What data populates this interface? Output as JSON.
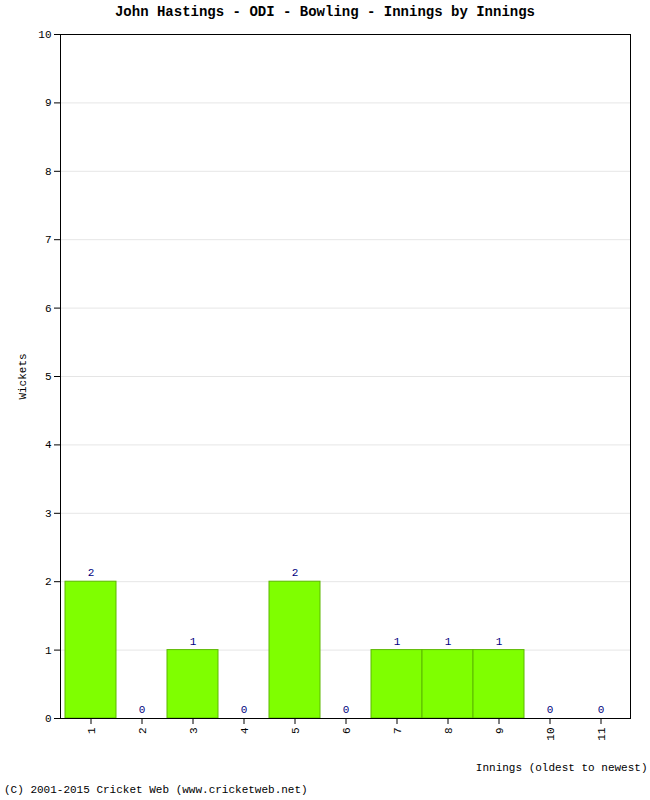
{
  "chart_data": {
    "type": "bar",
    "title": "John Hastings - ODI - Bowling - Innings by Innings",
    "caption": "(C) 2001-2015 Cricket Web (www.cricketweb.net)",
    "x_label": "Innings (oldest to newest)",
    "y_label": "Wickets",
    "categories": [
      "1",
      "2",
      "3",
      "4",
      "5",
      "6",
      "7",
      "8",
      "9",
      "10",
      "11"
    ],
    "values": [
      2,
      0,
      1,
      0,
      2,
      0,
      1,
      1,
      1,
      0,
      0
    ],
    "color": "#7fff00",
    "ylim": [
      0,
      10
    ],
    "yticks": [
      0,
      1,
      2,
      3,
      4,
      5,
      6,
      7,
      8,
      9,
      10
    ],
    "grid": true,
    "data_labels": true
  }
}
